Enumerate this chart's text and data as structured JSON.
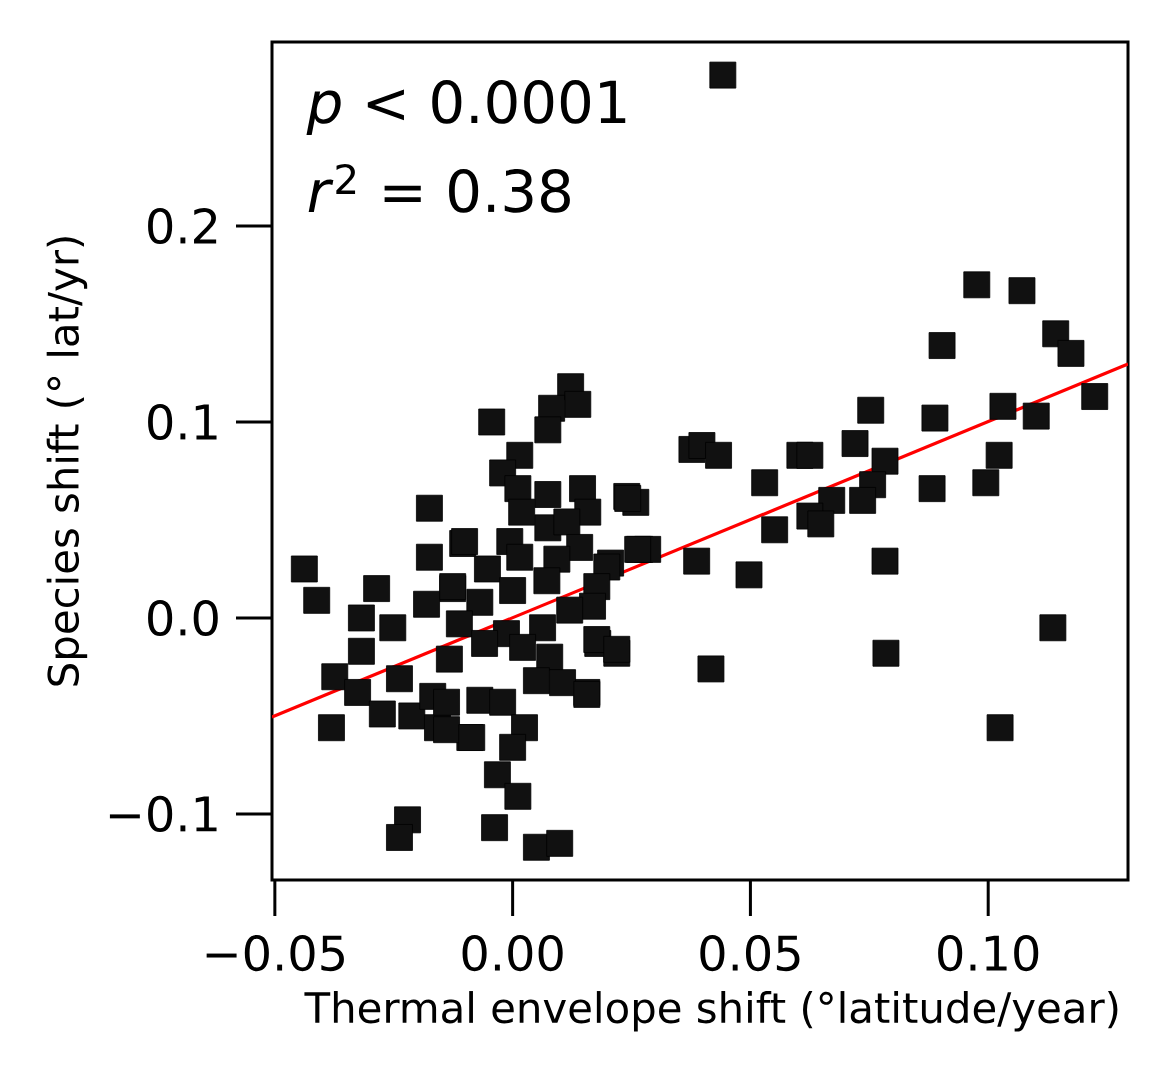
{
  "chart_data": {
    "type": "scatter",
    "xlabel": "Thermal envelope shift (°latitude/year)",
    "ylabel": "Species shift (° lat/yr)",
    "annotations": [
      "*p* < 0.0001",
      "*r*$^{2}$ = 0.38"
    ],
    "xlim": [
      -0.0506,
      0.1294
    ],
    "ylim": [
      -0.1337,
      0.2939
    ],
    "xticks": [
      {
        "value": -0.05,
        "label": "−0.05"
      },
      {
        "value": 0,
        "label": "0.00"
      },
      {
        "value": 0.05,
        "label": "0.05"
      },
      {
        "value": 0.1,
        "label": "0.10"
      }
    ],
    "yticks": [
      {
        "value": -0.1,
        "label": "−0.1"
      },
      {
        "value": 0,
        "label": "0.0"
      },
      {
        "value": 0.1,
        "label": "0.1"
      },
      {
        "value": 0.2,
        "label": "0.2"
      }
    ],
    "series": [
      {
        "color": "#111111",
        "marker": "square",
        "x": [
          0.0442,
          0.0976,
          0.1071,
          0.0903,
          0.1142,
          0.1174,
          0.1224,
          0.1101,
          0.1031,
          0.0888,
          0.0753,
          0.072,
          0.0604,
          0.0625,
          0.1023,
          0.0783,
          0.0757,
          0.0736,
          0.0671,
          0.0625,
          0.0648,
          0.0551,
          0.053,
          0.0882,
          0.0995,
          0.0377,
          0.0398,
          0.0433,
          0.0497,
          0.0387,
          0.0783,
          0.0417,
          0.0785,
          0.1136,
          0.1025,
          0.0259,
          0.024,
          0.0267,
          0.0284,
          0.0206,
          0.0219,
          0.0179,
          0.0156,
          -0.0175,
          -0.0105,
          -0.0438,
          -0.0412,
          -0.0175,
          -0.0286,
          -0.0318,
          -0.0252,
          -0.0181,
          -0.0318,
          -0.0374,
          -0.0326,
          -0.0274,
          -0.0212,
          -0.0158,
          -0.0381,
          -0.0238,
          -0.0168,
          -0.0221,
          -0.0238,
          -0.0126,
          -0.009,
          0.0122,
          0.0137,
          0.0082,
          0.0074,
          -0.0044,
          0.0015,
          -0.0021,
          0.0011,
          0.0074,
          0.0147,
          0.0242,
          0.0158,
          0.0019,
          0.0074,
          0.0114,
          -0.0101,
          -0.0006,
          0.0141,
          0.0093,
          0.0015,
          0.0263,
          0.0198,
          -0.0053,
          -0.0126,
          0.0,
          0.0177,
          0.0072,
          0.0168,
          -0.0069,
          0.012,
          0.0063,
          -0.0112,
          -0.0013,
          -0.0059,
          0.0021,
          0.0177,
          0.0219,
          0.0078,
          -0.0133,
          0.005,
          0.0105,
          0.0156,
          -0.0069,
          -0.0139,
          -0.0021,
          0.0025,
          -0.0139,
          -0.0086,
          0.0,
          -0.0032,
          0.0011,
          -0.0038,
          0.005,
          0.0099
        ],
        "values": [
          0.277,
          0.17,
          0.167,
          0.139,
          0.145,
          0.135,
          0.113,
          0.103,
          0.108,
          0.102,
          0.106,
          0.089,
          0.083,
          0.083,
          0.083,
          0.08,
          0.068,
          0.06,
          0.06,
          0.052,
          0.048,
          0.045,
          0.069,
          0.066,
          0.069,
          0.086,
          0.088,
          0.083,
          0.022,
          0.029,
          0.029,
          -0.026,
          -0.018,
          -0.005,
          -0.056,
          0.059,
          0.062,
          0.035,
          0.035,
          0.028,
          -0.018,
          -0.013,
          -0.038,
          0.056,
          0.038,
          0.025,
          0.009,
          0.031,
          0.015,
          0.0,
          -0.005,
          0.007,
          -0.017,
          -0.03,
          -0.038,
          -0.049,
          -0.05,
          -0.056,
          -0.056,
          -0.031,
          -0.04,
          -0.103,
          -0.112,
          0.015,
          -0.061,
          0.118,
          0.109,
          0.107,
          0.096,
          0.1,
          0.083,
          0.074,
          0.066,
          0.063,
          0.066,
          0.061,
          0.054,
          0.054,
          0.046,
          0.049,
          0.039,
          0.039,
          0.036,
          0.03,
          0.031,
          0.035,
          0.026,
          0.025,
          0.016,
          0.014,
          0.016,
          0.019,
          0.006,
          0.008,
          0.004,
          -0.005,
          -0.003,
          -0.008,
          -0.013,
          -0.015,
          -0.011,
          -0.016,
          -0.02,
          -0.021,
          -0.032,
          -0.033,
          -0.039,
          -0.042,
          -0.043,
          -0.043,
          -0.056,
          -0.057,
          -0.061,
          -0.066,
          -0.08,
          -0.091,
          -0.107,
          -0.117,
          -0.115
        ]
      },
      {
        "type": "line",
        "color": "#ff0000",
        "x": [
          -0.0506,
          0.1294
        ],
        "values": [
          -0.0505,
          0.1296
        ]
      }
    ]
  }
}
